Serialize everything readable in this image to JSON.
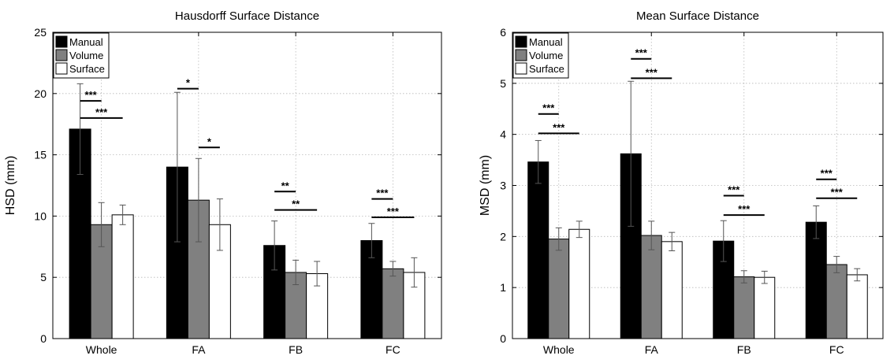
{
  "chart_data": [
    {
      "type": "bar",
      "title": "Hausdorff Surface Distance",
      "xlabel": "",
      "ylabel": "HSD (mm)",
      "ylim": [
        0,
        25
      ],
      "yticks": [
        0,
        5,
        10,
        15,
        20,
        25
      ],
      "grid": true,
      "legend_position": "top-left",
      "categories": [
        "Whole",
        "FA",
        "FB",
        "FC"
      ],
      "series": [
        {
          "name": "Manual",
          "color": "#000000",
          "values": [
            17.1,
            14.0,
            7.6,
            8.0
          ],
          "error": [
            3.7,
            6.1,
            2.0,
            1.4
          ]
        },
        {
          "name": "Volume",
          "color": "#808080",
          "values": [
            9.3,
            11.3,
            5.4,
            5.7
          ],
          "error": [
            1.8,
            3.4,
            1.0,
            0.6
          ]
        },
        {
          "name": "Surface",
          "color": "#ffffff",
          "values": [
            10.1,
            9.3,
            5.3,
            5.4
          ],
          "error": [
            0.8,
            2.1,
            1.0,
            1.2
          ]
        }
      ],
      "significance": [
        {
          "category": "Whole",
          "from": "Manual",
          "to": "Volume",
          "label": "***",
          "y": 19.4
        },
        {
          "category": "Whole",
          "from": "Manual",
          "to": "Surface",
          "label": "***",
          "y": 18.0
        },
        {
          "category": "FA",
          "from": "Manual",
          "to": "Volume",
          "label": "*",
          "y": 20.4
        },
        {
          "category": "FA",
          "from": "Volume",
          "to": "Surface",
          "label": "*",
          "y": 15.6
        },
        {
          "category": "FB",
          "from": "Manual",
          "to": "Volume",
          "label": "**",
          "y": 12.0
        },
        {
          "category": "FB",
          "from": "Manual",
          "to": "Surface",
          "label": "**",
          "y": 10.5
        },
        {
          "category": "FC",
          "from": "Manual",
          "to": "Volume",
          "label": "***",
          "y": 11.4
        },
        {
          "category": "FC",
          "from": "Manual",
          "to": "Surface",
          "label": "***",
          "y": 9.9
        }
      ]
    },
    {
      "type": "bar",
      "title": "Mean Surface Distance",
      "xlabel": "",
      "ylabel": "MSD (mm)",
      "ylim": [
        0,
        6
      ],
      "yticks": [
        0,
        1,
        2,
        3,
        4,
        5,
        6
      ],
      "grid": true,
      "legend_position": "top-left",
      "categories": [
        "Whole",
        "FA",
        "FB",
        "FC"
      ],
      "series": [
        {
          "name": "Manual",
          "color": "#000000",
          "values": [
            3.46,
            3.62,
            1.91,
            2.28
          ],
          "error": [
            0.42,
            1.42,
            0.4,
            0.32
          ]
        },
        {
          "name": "Volume",
          "color": "#808080",
          "values": [
            1.95,
            2.02,
            1.21,
            1.45
          ],
          "error": [
            0.22,
            0.28,
            0.12,
            0.16
          ]
        },
        {
          "name": "Surface",
          "color": "#ffffff",
          "values": [
            2.14,
            1.9,
            1.2,
            1.25
          ],
          "error": [
            0.16,
            0.18,
            0.12,
            0.12
          ]
        }
      ],
      "significance": [
        {
          "category": "Whole",
          "from": "Manual",
          "to": "Volume",
          "label": "***",
          "y": 4.4
        },
        {
          "category": "Whole",
          "from": "Manual",
          "to": "Surface",
          "label": "***",
          "y": 4.02
        },
        {
          "category": "FA",
          "from": "Manual",
          "to": "Volume",
          "label": "***",
          "y": 5.48
        },
        {
          "category": "FA",
          "from": "Manual",
          "to": "Surface",
          "label": "***",
          "y": 5.1
        },
        {
          "category": "FB",
          "from": "Manual",
          "to": "Volume",
          "label": "***",
          "y": 2.8
        },
        {
          "category": "FB",
          "from": "Manual",
          "to": "Surface",
          "label": "***",
          "y": 2.42
        },
        {
          "category": "FC",
          "from": "Manual",
          "to": "Volume",
          "label": "***",
          "y": 3.12
        },
        {
          "category": "FC",
          "from": "Manual",
          "to": "Surface",
          "label": "***",
          "y": 2.75
        }
      ]
    }
  ]
}
